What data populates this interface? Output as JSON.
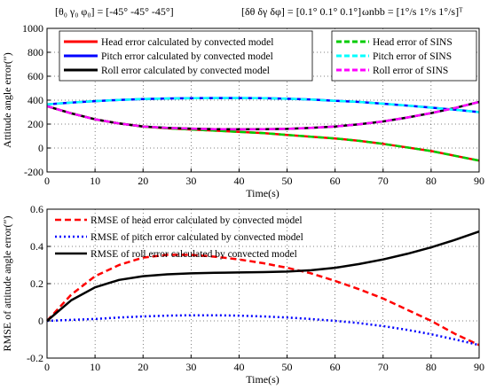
{
  "chart_data": [
    {
      "type": "line",
      "equation": {
        "init_angles": "[θ₀  γ₀  φ₀] = [-45°  -45°  -45°]",
        "init_errors": "[δθ  δγ  δφ] = [0.1°  0.1°  0.1°]",
        "angular_rate": "ωnbb = [1°/s  1°/s  1°/s]ᵀ"
      },
      "xlabel": "Time(s)",
      "ylabel": "Attitude angle error(″)",
      "xlim": [
        0,
        90
      ],
      "ylim": [
        -200,
        1000
      ],
      "xticks": [
        0,
        10,
        20,
        30,
        40,
        50,
        60,
        70,
        80,
        90
      ],
      "yticks": [
        -200,
        0,
        200,
        400,
        600,
        800,
        1000
      ],
      "grid": true,
      "legend_left_position": "top-left",
      "legend_right_position": "top-right",
      "x": [
        0,
        5,
        10,
        15,
        20,
        25,
        30,
        35,
        40,
        45,
        50,
        55,
        60,
        65,
        70,
        75,
        80,
        85,
        90
      ],
      "series": [
        {
          "name": "Head error calculated by convected model",
          "color": "#ff0000",
          "style": "solid",
          "values": [
            350,
            290,
            240,
            205,
            180,
            165,
            155,
            145,
            135,
            125,
            110,
            95,
            80,
            60,
            35,
            5,
            -25,
            -65,
            -105
          ]
        },
        {
          "name": "Pitch error calculated by convected model",
          "color": "#0000ff",
          "style": "solid",
          "values": [
            365,
            380,
            392,
            402,
            410,
            414,
            416,
            418,
            418,
            416,
            412,
            405,
            395,
            385,
            370,
            355,
            338,
            320,
            300
          ]
        },
        {
          "name": "Roll error calculated by convected model",
          "color": "#000000",
          "style": "solid",
          "values": [
            350,
            290,
            240,
            205,
            180,
            168,
            162,
            158,
            156,
            157,
            160,
            168,
            180,
            198,
            222,
            255,
            292,
            335,
            385
          ]
        },
        {
          "name": "Head error of SINS",
          "color": "#00cc00",
          "style": "dashed",
          "values": [
            350,
            290,
            240,
            205,
            180,
            165,
            155,
            145,
            135,
            125,
            110,
            95,
            80,
            60,
            35,
            5,
            -25,
            -65,
            -105
          ]
        },
        {
          "name": "Pitch error of SINS",
          "color": "#00ffff",
          "style": "dashed",
          "values": [
            365,
            380,
            392,
            402,
            410,
            414,
            416,
            418,
            418,
            416,
            412,
            405,
            395,
            385,
            370,
            355,
            338,
            320,
            300
          ]
        },
        {
          "name": "Roll error of SINS",
          "color": "#ff00ff",
          "style": "dashed",
          "values": [
            350,
            290,
            240,
            205,
            180,
            168,
            162,
            158,
            156,
            157,
            160,
            168,
            180,
            198,
            222,
            255,
            292,
            335,
            385
          ]
        }
      ]
    },
    {
      "type": "line",
      "xlabel": "Time(s)",
      "ylabel": "RMSE of attitude angle error(″)",
      "xlim": [
        0,
        90
      ],
      "ylim": [
        -0.2,
        0.6
      ],
      "xticks": [
        0,
        10,
        20,
        30,
        40,
        50,
        60,
        70,
        80,
        90
      ],
      "yticks": [
        -0.2,
        0,
        0.2,
        0.4,
        0.6
      ],
      "grid": true,
      "legend_position": "top-left",
      "x": [
        0,
        5,
        10,
        15,
        20,
        25,
        30,
        35,
        40,
        45,
        50,
        55,
        60,
        65,
        70,
        75,
        80,
        85,
        90
      ],
      "series": [
        {
          "name": "RMSE of head error calculated by convected model",
          "color": "#ff0000",
          "style": "dashed",
          "values": [
            0.0,
            0.14,
            0.24,
            0.3,
            0.34,
            0.355,
            0.355,
            0.345,
            0.33,
            0.31,
            0.285,
            0.255,
            0.215,
            0.17,
            0.12,
            0.06,
            0.0,
            -0.07,
            -0.13
          ]
        },
        {
          "name": "RMSE of pitch error calculated by convected model",
          "color": "#0000ff",
          "style": "dotted",
          "values": [
            0.0,
            0.005,
            0.01,
            0.018,
            0.024,
            0.028,
            0.03,
            0.03,
            0.028,
            0.024,
            0.018,
            0.01,
            0.0,
            -0.012,
            -0.028,
            -0.048,
            -0.072,
            -0.1,
            -0.13
          ]
        },
        {
          "name": "RMSE of roll error calculated by convected model",
          "color": "#000000",
          "style": "solid",
          "values": [
            0.0,
            0.11,
            0.18,
            0.22,
            0.24,
            0.25,
            0.255,
            0.258,
            0.26,
            0.262,
            0.265,
            0.272,
            0.285,
            0.305,
            0.33,
            0.36,
            0.395,
            0.435,
            0.48
          ]
        }
      ]
    }
  ]
}
